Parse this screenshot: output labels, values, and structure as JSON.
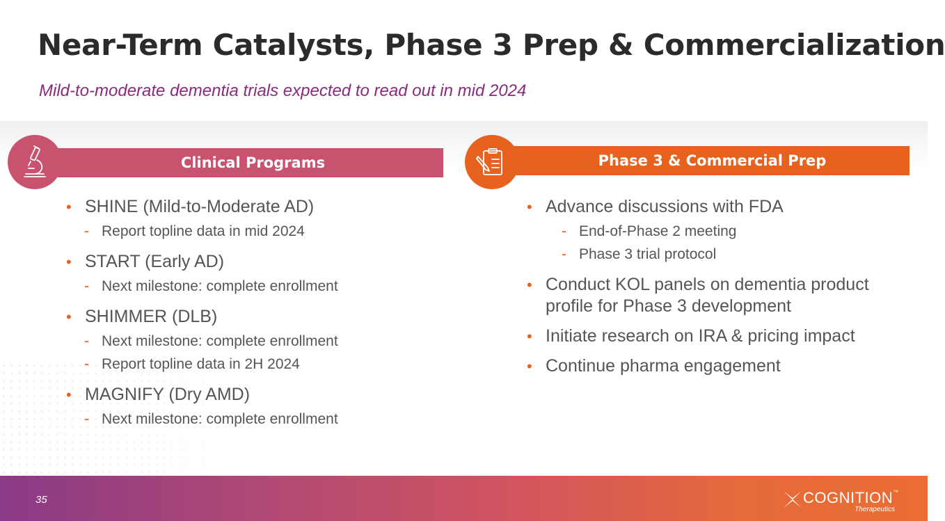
{
  "title": "Near-Term Catalysts, Phase 3 Prep & Commercialization",
  "subtitle": "Mild-to-moderate dementia trials expected to read out in mid 2024",
  "left_panel": {
    "header": "Clinical Programs",
    "icon": "microscope-icon",
    "items": [
      {
        "label": "SHINE (Mild-to-Moderate AD)",
        "subs": [
          "Report topline data in mid 2024"
        ]
      },
      {
        "label": "START (Early AD)",
        "subs": [
          "Next milestone: complete enrollment"
        ]
      },
      {
        "label": "SHIMMER (DLB)",
        "subs": [
          "Next milestone: complete enrollment",
          "Report topline data in 2H 2024"
        ]
      },
      {
        "label": "MAGNIFY (Dry AMD)",
        "subs": [
          "Next milestone: complete enrollment"
        ]
      }
    ]
  },
  "right_panel": {
    "header": "Phase 3 & Commercial Prep",
    "icon": "clipboard-icon",
    "items": [
      {
        "label": "Advance discussions with FDA",
        "subs": [
          "End-of-Phase 2 meeting",
          "Phase 3 trial protocol"
        ]
      },
      {
        "label": "Conduct KOL panels on dementia product profile for Phase 3 development",
        "subs": []
      },
      {
        "label": "Initiate research on IRA & pricing impact",
        "subs": []
      },
      {
        "label": "Continue pharma engagement",
        "subs": []
      }
    ]
  },
  "footer": {
    "page_number": "35",
    "logo_name": "COGNITION",
    "logo_tm": "™",
    "logo_sub": "Therapeutics"
  },
  "colors": {
    "title": "#2b2b2b",
    "subtitle": "#8a2a7a",
    "left_accent": "#c9526f",
    "right_accent": "#e8621f",
    "bullet": "#e8621f",
    "body_text": "#555555"
  }
}
